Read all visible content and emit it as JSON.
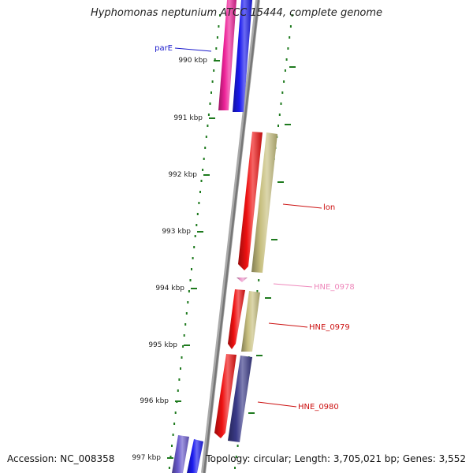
{
  "title": "Hyphomonas neptunium ATCC 15444, complete genome",
  "accession": "Accession: NC_008358",
  "footer_info": "Topology: circular; Length: 3,705,021 bp; Genes: 3,552",
  "colors": {
    "backbone": "#8a8a8a",
    "tick": "#1e7a1e",
    "red_gene": "#ee1111",
    "khaki_gene": "#c8c080",
    "blue_gene": "#1a1aee",
    "magenta_gene": "#ee2299",
    "navy_gene": "#3a3a88",
    "purple_gene": "#6a5acd",
    "pink_gene": "#ee99cc"
  },
  "scale_labels": [
    "990 kbp",
    "991 kbp",
    "992 kbp",
    "993 kbp",
    "994 kbp",
    "995 kbp",
    "996 kbp",
    "997 kbp"
  ],
  "genes": [
    {
      "name": "parE",
      "color": "#1a1acc"
    },
    {
      "name": "lon",
      "color": "#cc1111"
    },
    {
      "name": "HNE_0978",
      "color": "#ee88bb"
    },
    {
      "name": "HNE_0979",
      "color": "#cc1111"
    },
    {
      "name": "HNE_0980",
      "color": "#cc1111"
    }
  ]
}
